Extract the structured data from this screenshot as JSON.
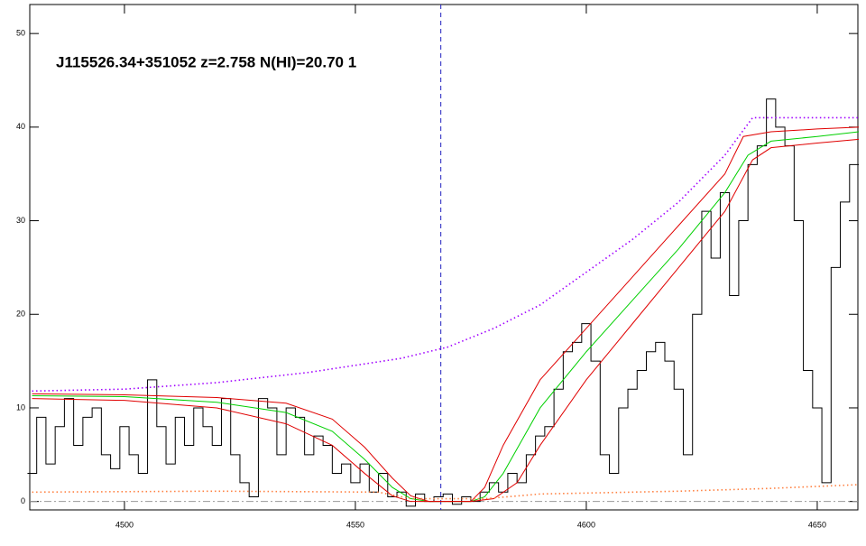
{
  "chart_data": {
    "type": "line",
    "title": "J115526.34+351052 z=2.758 N(HI)=20.70 1",
    "xlim": [
      4479.5,
      4658.8
    ],
    "ylim": [
      -0.9,
      53.1
    ],
    "xticks": [
      4500,
      4550,
      4600,
      4650
    ],
    "yticks": [
      0,
      10,
      20,
      30,
      40,
      50
    ],
    "hline": 0,
    "hline_color": "#999999",
    "vline": 4568.5,
    "vline_color": "#2020c0",
    "series": [
      {
        "color": "#000000",
        "style": "steps",
        "x": [
          4480,
          4482,
          4484,
          4486,
          4488,
          4490,
          4492,
          4494,
          4496,
          4498,
          4500,
          4502,
          4504,
          4506,
          4508,
          4510,
          4512,
          4514,
          4516,
          4518,
          4520,
          4522,
          4524,
          4526,
          4528,
          4530,
          4532,
          4534,
          4536,
          4538,
          4540,
          4542,
          4544,
          4546,
          4548,
          4550,
          4552,
          4554,
          4556,
          4558,
          4560,
          4562,
          4564,
          4566,
          4568,
          4570,
          4572,
          4574,
          4576,
          4578,
          4580,
          4582,
          4584,
          4586,
          4588,
          4590,
          4592,
          4594,
          4596,
          4598,
          4600,
          4602,
          4604,
          4606,
          4608,
          4610,
          4612,
          4614,
          4616,
          4618,
          4620,
          4622,
          4624,
          4626,
          4628,
          4630,
          4632,
          4634,
          4636,
          4638,
          4640,
          4642,
          4644,
          4646,
          4648,
          4650,
          4652,
          4654,
          4656,
          4658
        ],
        "values": [
          3,
          9,
          4,
          8,
          11,
          6,
          9,
          10,
          5,
          3.5,
          8,
          5,
          3,
          13,
          8,
          4,
          9,
          6,
          10,
          8,
          6,
          11,
          5,
          2,
          0.5,
          11,
          10,
          5,
          10,
          9,
          5,
          7,
          6,
          3,
          4,
          2,
          4,
          1,
          3,
          0.5,
          1,
          -0.5,
          0.8,
          0,
          0.5,
          0.8,
          -0.3,
          0.5,
          0,
          1,
          2,
          1,
          3,
          2,
          5,
          7,
          8,
          12,
          16,
          17,
          19,
          15,
          5,
          3,
          10,
          12,
          14,
          16,
          17,
          15,
          12,
          5,
          20,
          31,
          26,
          33,
          22,
          30,
          36,
          38,
          43,
          40,
          38,
          30,
          14,
          10,
          2,
          25,
          32,
          36
        ]
      },
      {
        "color": "#00d000",
        "style": "solid",
        "x": [
          4480,
          4500,
          4520,
          4535,
          4545,
          4552,
          4558,
          4562,
          4566,
          4575,
          4578,
          4582,
          4590,
          4600,
          4610,
          4620,
          4630,
          4635,
          4640,
          4650,
          4659
        ],
        "values": [
          11.3,
          11.2,
          10.6,
          9.5,
          7.5,
          4.5,
          1.5,
          0.3,
          0,
          0,
          0.5,
          3,
          10,
          16,
          21.5,
          27,
          33,
          37,
          38.5,
          39,
          39.5
        ]
      },
      {
        "color": "#e00000",
        "style": "solid",
        "x": [
          4480,
          4500,
          4520,
          4535,
          4545,
          4552,
          4558,
          4562,
          4566,
          4575,
          4578,
          4582,
          4590,
          4600,
          4610,
          4620,
          4630,
          4634,
          4640,
          4650,
          4659
        ],
        "values": [
          11.5,
          11.4,
          11.1,
          10.5,
          8.8,
          5.8,
          2.5,
          0.6,
          0,
          0,
          1.5,
          6,
          13,
          18.5,
          24,
          29.5,
          35,
          39,
          39.5,
          39.8,
          40
        ]
      },
      {
        "color": "#e00000",
        "style": "solid",
        "x": [
          4480,
          4500,
          4520,
          4535,
          4545,
          4552,
          4558,
          4562,
          4575,
          4580,
          4585,
          4590,
          4600,
          4610,
          4620,
          4630,
          4636,
          4640,
          4650,
          4659
        ],
        "values": [
          11,
          10.8,
          10,
          8.3,
          6,
          3,
          0.6,
          0,
          0,
          0.3,
          2,
          6,
          13,
          19,
          25,
          31,
          36.5,
          37.8,
          38.3,
          38.7
        ]
      },
      {
        "color": "#a000ff",
        "style": "dotted",
        "x": [
          4480,
          4500,
          4520,
          4540,
          4560,
          4570,
          4580,
          4590,
          4600,
          4610,
          4620,
          4630,
          4636,
          4659
        ],
        "values": [
          11.8,
          12,
          12.7,
          13.8,
          15.3,
          16.5,
          18.5,
          21,
          24.5,
          28,
          32,
          37,
          41,
          41
        ]
      },
      {
        "color": "#ff8040",
        "style": "dotted",
        "x": [
          4480,
          4520,
          4555,
          4562,
          4578,
          4590,
          4620,
          4640,
          4659
        ],
        "values": [
          1,
          1.1,
          1,
          0.3,
          0.3,
          0.8,
          1.1,
          1.4,
          1.8
        ]
      }
    ]
  }
}
